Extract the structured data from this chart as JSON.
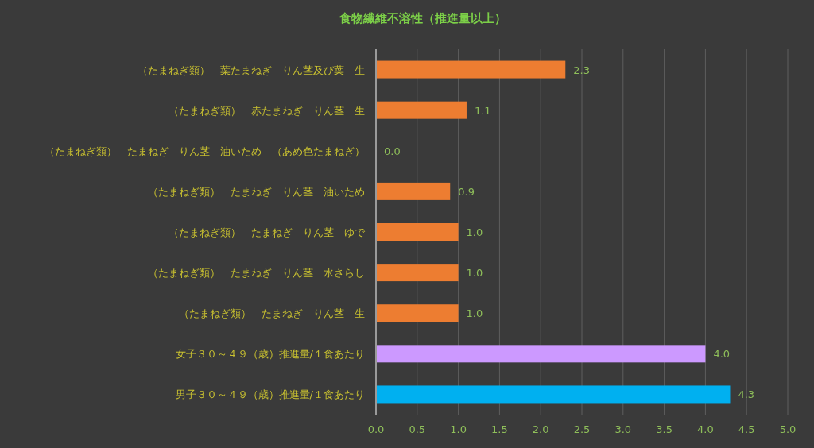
{
  "chart_data": {
    "type": "bar",
    "orientation": "horizontal",
    "title": "食物繊維不溶性（推進量以上）",
    "categories": [
      "（たまねぎ類）　葉たまねぎ　りん茎及び葉　生",
      "（たまねぎ類）　赤たまねぎ　りん茎　生",
      "（たまねぎ類）　たまねぎ　りん茎　油いため　（あめ色たまねぎ）",
      "（たまねぎ類）　たまねぎ　りん茎　油いため",
      "（たまねぎ類）　たまねぎ　りん茎　ゆで",
      "（たまねぎ類）　たまねぎ　りん茎　水さらし",
      "（たまねぎ類）　たまねぎ　りん茎　生",
      "女子３０～４９（歳）推進量/１食あたり",
      "男子３０～４９（歳）推進量/１食あたり"
    ],
    "values": [
      2.3,
      1.1,
      0.0,
      0.9,
      1.0,
      1.0,
      1.0,
      4.0,
      4.3
    ],
    "value_labels": [
      "2.3",
      "1.1",
      "0.0",
      "0.9",
      "1.0",
      "1.0",
      "1.0",
      "4.0",
      "4.3"
    ],
    "colors": [
      "#ed7d31",
      "#ed7d31",
      "#ed7d31",
      "#ed7d31",
      "#ed7d31",
      "#ed7d31",
      "#ed7d31",
      "#cc99ff",
      "#00b0f0"
    ],
    "xlim": [
      0,
      5
    ],
    "xticks": [
      {
        "value": 0,
        "label": "0.0"
      },
      {
        "value": 0.5,
        "label": "0.5"
      },
      {
        "value": 1,
        "label": "1.0"
      },
      {
        "value": 1.5,
        "label": "1.5"
      },
      {
        "value": 2,
        "label": "2.0"
      },
      {
        "value": 2.5,
        "label": "2.5"
      },
      {
        "value": 3,
        "label": "3.0"
      },
      {
        "value": 3.5,
        "label": "3.5"
      },
      {
        "value": 4,
        "label": "4.0"
      },
      {
        "value": 4.5,
        "label": "4.5"
      },
      {
        "value": 5,
        "label": "5.0"
      }
    ],
    "grid": "x"
  }
}
